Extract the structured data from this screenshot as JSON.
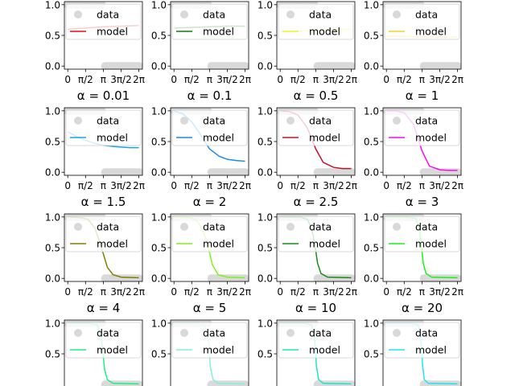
{
  "figure": {
    "columns": 4
  },
  "chart_data": {
    "type": "line",
    "ylim": [
      -0.05,
      1.05
    ],
    "xlim": [
      -0.3,
      6.6
    ],
    "xticks": [
      0,
      1.5708,
      3.1416,
      4.7124,
      6.2832
    ],
    "xtick_labels": [
      "0",
      "π/2",
      "π",
      "3π/2",
      "2π"
    ],
    "yticks": [
      0.0,
      0.5,
      1.0
    ],
    "ytick_labels": [
      "0.0",
      "0.5",
      "1.0"
    ],
    "grid": false,
    "legend": {
      "placement": "upper-left",
      "entries": [
        "data",
        "model"
      ]
    },
    "data_color": "#d9d9d9",
    "data_points": {
      "x": [
        0.0,
        0.2,
        0.4,
        0.6,
        0.8,
        1.0,
        1.2,
        1.4,
        1.6,
        1.8,
        2.0,
        2.2,
        2.4,
        2.6,
        2.8,
        3.0,
        3.3,
        3.5,
        3.7,
        3.9,
        4.1,
        4.3,
        4.5,
        4.7,
        4.9,
        5.1,
        5.3,
        5.5,
        5.7,
        5.9,
        6.1,
        6.3
      ],
      "y": [
        1.0,
        1.0,
        1.0,
        1.0,
        1.0,
        1.0,
        1.0,
        1.0,
        1.0,
        1.0,
        1.0,
        1.0,
        1.0,
        1.0,
        1.0,
        1.0,
        0.0,
        0.0,
        0.0,
        0.0,
        0.0,
        0.0,
        0.0,
        0.0,
        0.0,
        0.0,
        0.0,
        0.0,
        0.0,
        0.0,
        0.0,
        0.0
      ]
    },
    "panels": [
      {
        "title": "α = 0.01",
        "alpha": 0.01,
        "color": "#e60d0d",
        "x": [
          0,
          1.5708,
          3.1416,
          4.7124,
          6.2832
        ],
        "y": [
          0.6,
          0.62,
          0.64,
          0.65,
          0.66
        ]
      },
      {
        "title": "α = 0.1",
        "alpha": 0.1,
        "color": "#0d7a0d",
        "x": [
          0,
          1.5708,
          3.1416,
          4.7124,
          6.2832
        ],
        "y": [
          0.62,
          0.63,
          0.64,
          0.65,
          0.65
        ]
      },
      {
        "title": "α = 0.5",
        "alpha": 0.5,
        "color": "#f2f22e",
        "x": [
          0,
          1.5708,
          3.1416,
          4.7124,
          6.2832
        ],
        "y": [
          0.56,
          0.57,
          0.58,
          0.59,
          0.6
        ]
      },
      {
        "title": "α = 1",
        "alpha": 1,
        "color": "#f2d91a",
        "x": [
          0,
          1.5708,
          3.1416,
          4.7124,
          6.2832
        ],
        "y": [
          0.49,
          0.48,
          0.48,
          0.47,
          0.47
        ]
      },
      {
        "title": "α = 1.5",
        "alpha": 1.5,
        "color": "#1aa3e6",
        "x": [
          0,
          0.8,
          1.5708,
          2.4,
          3.1416,
          4.0,
          4.7124,
          5.5,
          6.2832
        ],
        "y": [
          0.66,
          0.58,
          0.52,
          0.47,
          0.44,
          0.42,
          0.41,
          0.4,
          0.4
        ]
      },
      {
        "title": "α = 2",
        "alpha": 2,
        "color": "#1a8ce6",
        "x": [
          0,
          0.8,
          1.5708,
          2.4,
          3.1416,
          4.0,
          4.7124,
          5.5,
          6.2832
        ],
        "y": [
          1.0,
          0.95,
          0.82,
          0.6,
          0.38,
          0.26,
          0.21,
          0.19,
          0.18
        ]
      },
      {
        "title": "α = 2.5",
        "alpha": 2.5,
        "color": "#c8102e",
        "x": [
          0,
          0.8,
          1.5708,
          2.4,
          3.1416,
          3.8,
          4.7124,
          5.5,
          6.2832
        ],
        "y": [
          1.0,
          0.99,
          0.93,
          0.72,
          0.38,
          0.16,
          0.08,
          0.06,
          0.06
        ]
      },
      {
        "title": "α = 3",
        "alpha": 3,
        "color": "#f20df2",
        "x": [
          0,
          0.8,
          1.5708,
          2.4,
          3.1416,
          3.8,
          4.7124,
          5.5,
          6.2832
        ],
        "y": [
          1.0,
          1.0,
          0.97,
          0.78,
          0.35,
          0.1,
          0.04,
          0.03,
          0.03
        ]
      },
      {
        "title": "α = 4",
        "alpha": 4,
        "color": "#808000",
        "x": [
          0,
          1.2,
          1.8,
          2.4,
          2.8,
          3.1416,
          3.5,
          4.0,
          4.7124,
          6.2832
        ],
        "y": [
          1.0,
          0.99,
          0.96,
          0.82,
          0.6,
          0.4,
          0.18,
          0.06,
          0.02,
          0.01
        ]
      },
      {
        "title": "α = 5",
        "alpha": 5,
        "color": "#80f21a",
        "x": [
          0,
          1.4,
          2.0,
          2.5,
          2.9,
          3.1416,
          3.4,
          3.9,
          4.7124,
          6.2832
        ],
        "y": [
          1.0,
          0.99,
          0.95,
          0.8,
          0.6,
          0.42,
          0.22,
          0.06,
          0.02,
          0.01
        ]
      },
      {
        "title": "α = 10",
        "alpha": 10,
        "color": "#1a8c1a",
        "x": [
          0,
          1.8,
          2.4,
          2.8,
          3.0,
          3.1416,
          3.3,
          3.6,
          4.2,
          6.2832
        ],
        "y": [
          1.0,
          1.0,
          0.96,
          0.8,
          0.62,
          0.45,
          0.25,
          0.08,
          0.02,
          0.01
        ]
      },
      {
        "title": "α = 20",
        "alpha": 20,
        "color": "#1af21a",
        "x": [
          0,
          2.0,
          2.6,
          2.9,
          3.05,
          3.1416,
          3.25,
          3.5,
          4.0,
          6.2832
        ],
        "y": [
          1.0,
          1.0,
          0.97,
          0.82,
          0.62,
          0.45,
          0.25,
          0.08,
          0.02,
          0.01
        ]
      },
      {
        "title": "",
        "color": "#1af280",
        "x": [
          0,
          2.0,
          2.6,
          2.9,
          3.05,
          3.1416,
          3.25,
          3.5,
          4.0,
          6.2832
        ],
        "y": [
          1.0,
          1.0,
          0.97,
          0.82,
          0.62,
          0.45,
          0.25,
          0.08,
          0.02,
          0.01
        ]
      },
      {
        "title": "",
        "color": "#80f2d9",
        "x": [
          0,
          2.1,
          2.7,
          2.95,
          3.1,
          3.1416,
          3.2,
          3.45,
          3.9,
          6.2832
        ],
        "y": [
          1.0,
          1.0,
          0.97,
          0.82,
          0.62,
          0.5,
          0.3,
          0.08,
          0.02,
          0.01
        ]
      },
      {
        "title": "",
        "color": "#1ae6c8",
        "x": [
          0,
          2.2,
          2.75,
          3.0,
          3.1,
          3.1416,
          3.2,
          3.4,
          3.8,
          6.2832
        ],
        "y": [
          1.0,
          1.0,
          0.97,
          0.82,
          0.62,
          0.5,
          0.3,
          0.08,
          0.02,
          0.01
        ]
      },
      {
        "title": "",
        "color": "#1ae6f2",
        "x": [
          0,
          2.3,
          2.8,
          3.0,
          3.1,
          3.1416,
          3.2,
          3.35,
          3.7,
          6.2832
        ],
        "y": [
          1.0,
          1.0,
          0.97,
          0.84,
          0.64,
          0.5,
          0.3,
          0.08,
          0.02,
          0.01
        ]
      }
    ]
  }
}
